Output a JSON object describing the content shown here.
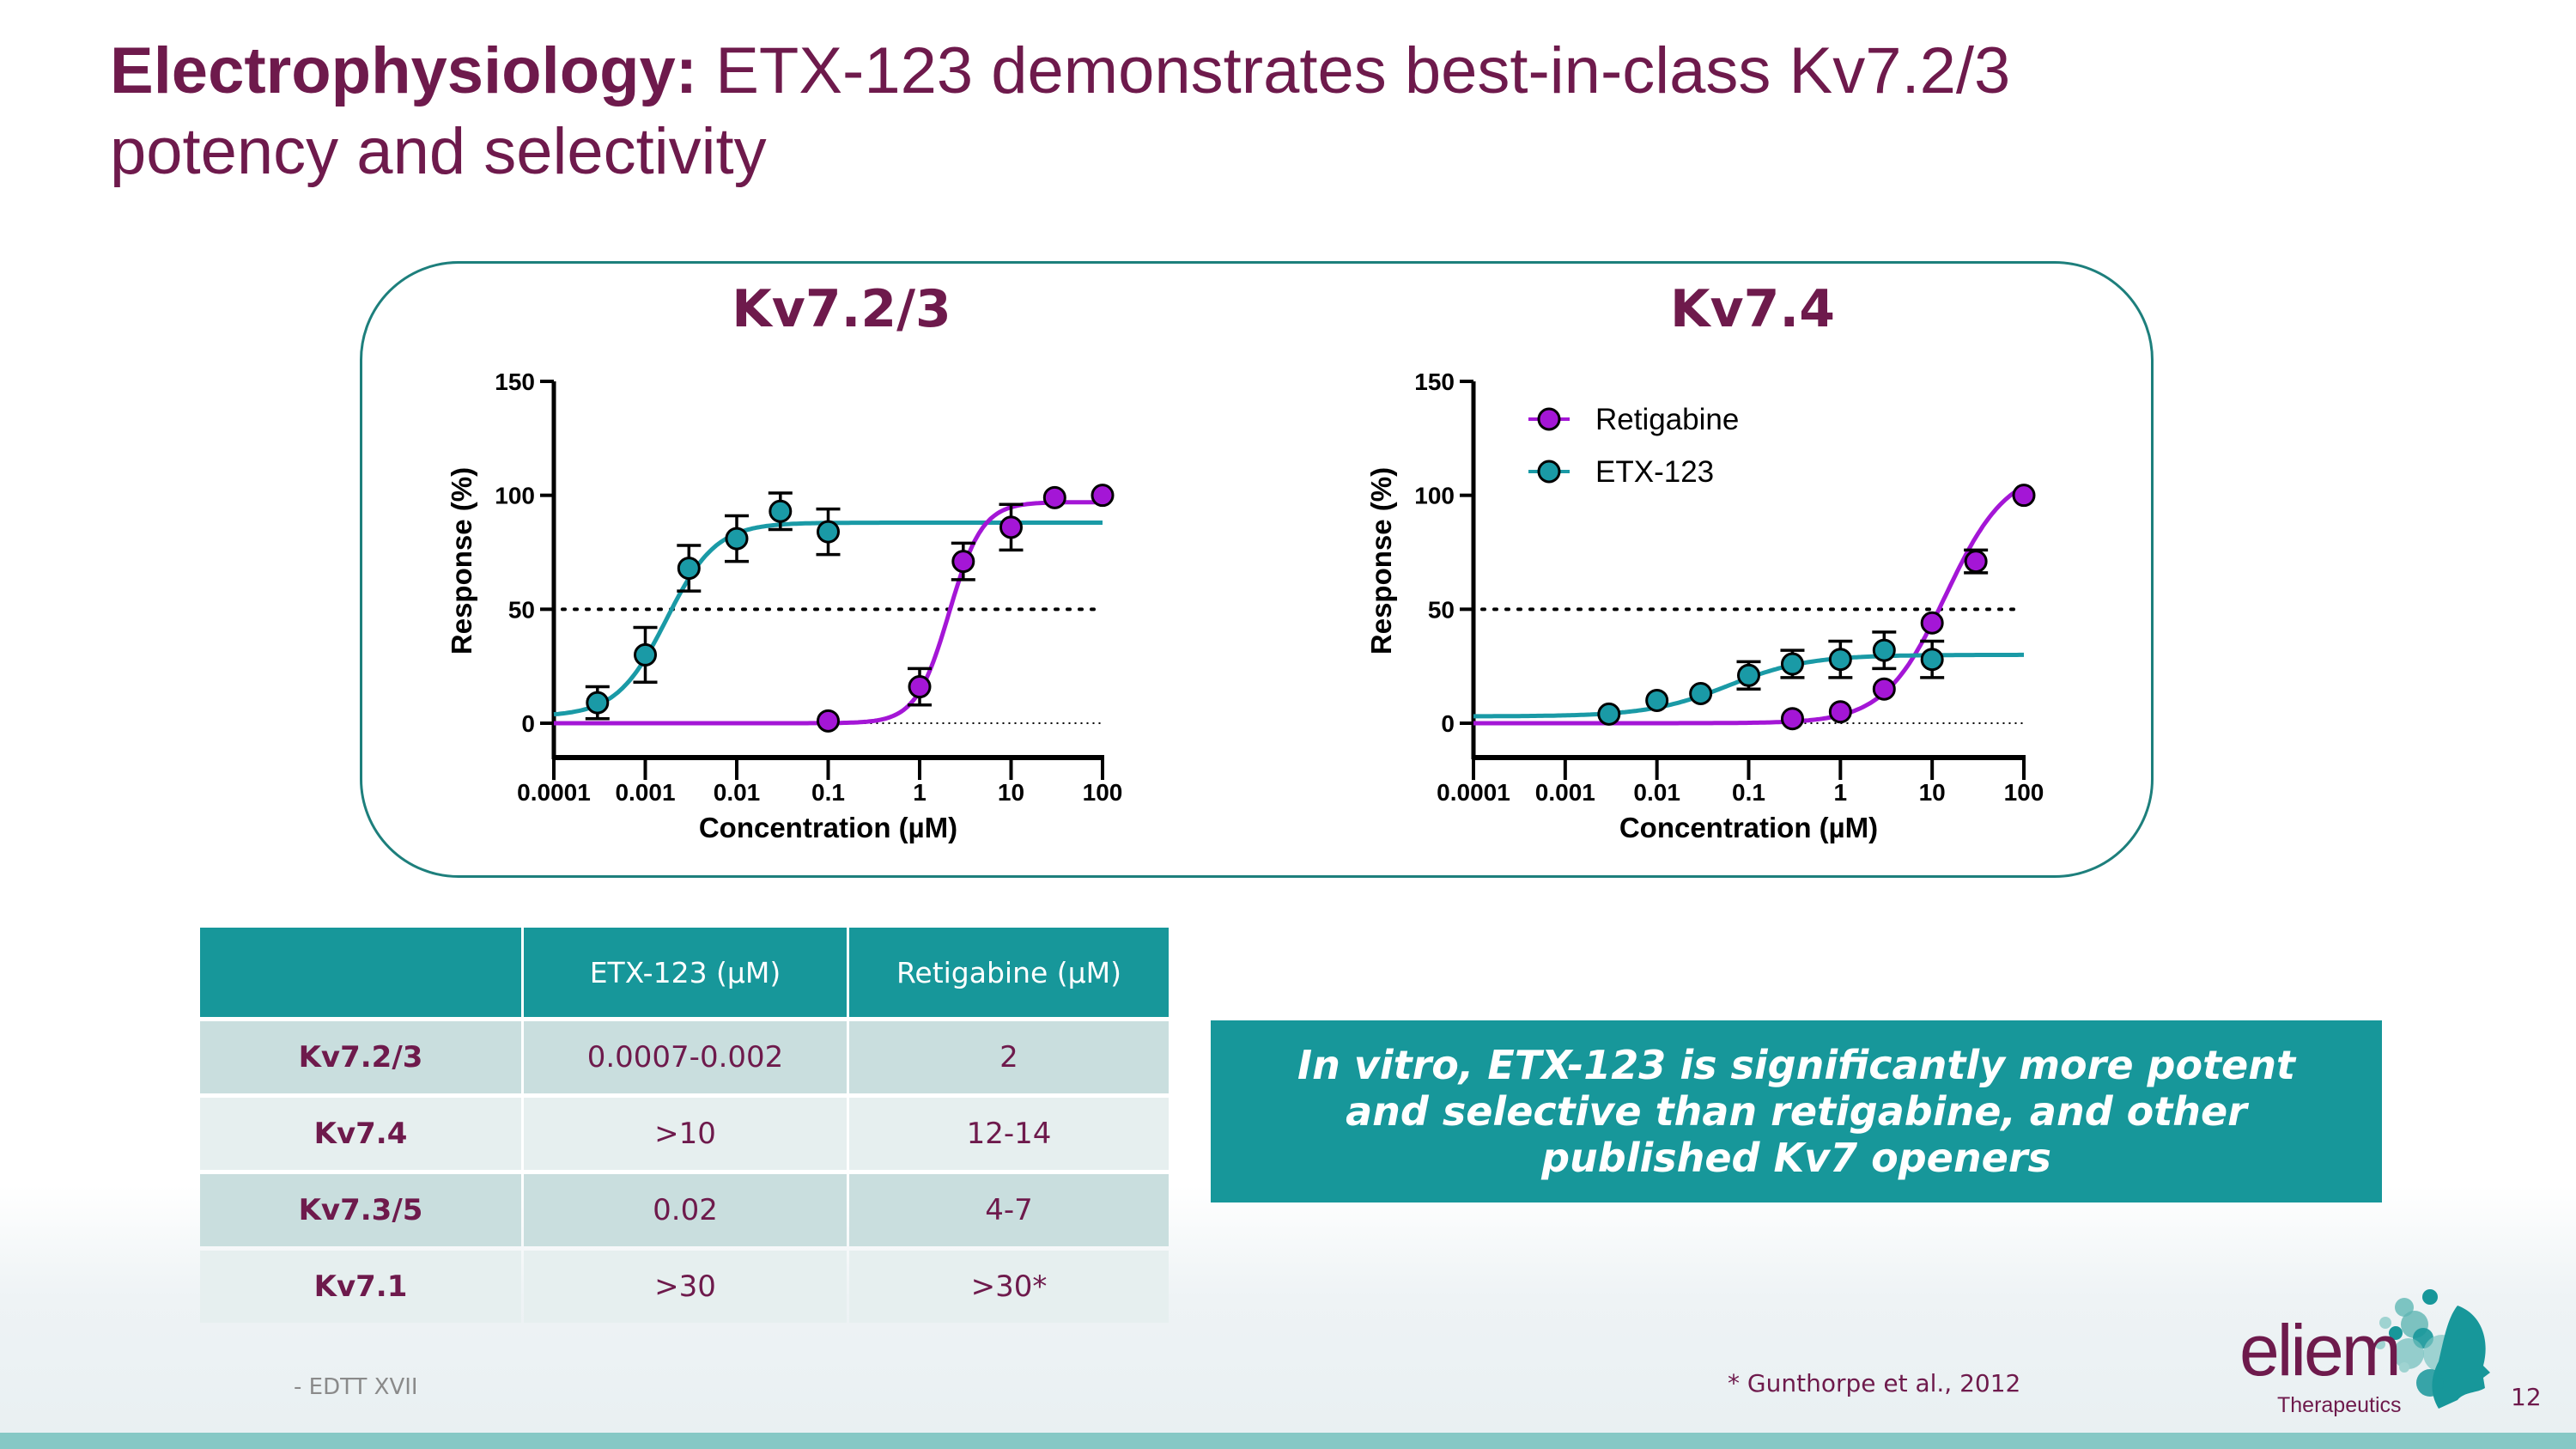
{
  "title": {
    "bold": "Electrophysiology:",
    "regular": " ETX-123 demonstrates best-in-class Kv7.2/3",
    "line2": "potency and selectivity"
  },
  "colors": {
    "brand_plum": "#6e1a4c",
    "teal": "#17979a",
    "etx123_series": "#1a9aa6",
    "retigabine_series": "#a416d6"
  },
  "chart_data": [
    {
      "type": "scatter",
      "title": "Kv7.2/3",
      "xlabel": "Concentration (µM)",
      "ylabel": "Response (%)",
      "xscale": "log",
      "xlim": [
        0.0001,
        100
      ],
      "ylim": [
        0,
        150
      ],
      "xticks": [
        "0.0001",
        "0.001",
        "0.01",
        "0.1",
        "1",
        "10",
        "100"
      ],
      "yticks": [
        "0",
        "50",
        "100",
        "150"
      ],
      "reference_lines": [
        {
          "y": 50,
          "style": "dotted"
        },
        {
          "y": 0,
          "style": "dotted",
          "from_x": 0.1
        }
      ],
      "series": [
        {
          "name": "ETX-123",
          "color": "#1a9aa6",
          "points": [
            {
              "x": 0.0003,
              "y": 9,
              "err": 7
            },
            {
              "x": 0.001,
              "y": 30,
              "err": 12
            },
            {
              "x": 0.003,
              "y": 68,
              "err": 10
            },
            {
              "x": 0.01,
              "y": 81,
              "err": 10
            },
            {
              "x": 0.03,
              "y": 93,
              "err": 8
            },
            {
              "x": 0.1,
              "y": 84,
              "err": 10
            }
          ],
          "fit": {
            "bottom": 3,
            "top": 88,
            "ec50": 0.0017,
            "hill": 1.6
          }
        },
        {
          "name": "Retigabine",
          "color": "#a416d6",
          "points": [
            {
              "x": 0.1,
              "y": 1,
              "err": 0
            },
            {
              "x": 1,
              "y": 16,
              "err": 8
            },
            {
              "x": 3,
              "y": 71,
              "err": 8
            },
            {
              "x": 10,
              "y": 86,
              "err": 10
            },
            {
              "x": 30,
              "y": 99,
              "err": 0
            },
            {
              "x": 100,
              "y": 100,
              "err": 0
            }
          ],
          "fit": {
            "bottom": 0,
            "top": 97,
            "ec50": 2.1,
            "hill": 2.4
          }
        }
      ]
    },
    {
      "type": "scatter",
      "title": "Kv7.4",
      "xlabel": "Concentration (µM)",
      "ylabel": "Response (%)",
      "xscale": "log",
      "xlim": [
        0.0001,
        100
      ],
      "ylim": [
        0,
        150
      ],
      "xticks": [
        "0.0001",
        "0.001",
        "0.01",
        "0.1",
        "1",
        "10",
        "100"
      ],
      "yticks": [
        "0",
        "50",
        "100",
        "150"
      ],
      "reference_lines": [
        {
          "y": 50,
          "style": "dotted"
        },
        {
          "y": 0,
          "style": "dotted",
          "from_x": 0.3
        }
      ],
      "legend": {
        "position": "top-left",
        "entries": [
          "Retigabine",
          "ETX-123"
        ]
      },
      "series": [
        {
          "name": "Retigabine",
          "color": "#a416d6",
          "points": [
            {
              "x": 0.3,
              "y": 2,
              "err": 0
            },
            {
              "x": 1,
              "y": 5,
              "err": 0
            },
            {
              "x": 3,
              "y": 15,
              "err": 0
            },
            {
              "x": 10,
              "y": 44,
              "err": 0
            },
            {
              "x": 30,
              "y": 71,
              "err": 5
            },
            {
              "x": 100,
              "y": 100,
              "err": 0
            }
          ],
          "fit": {
            "bottom": 0,
            "top": 112,
            "ec50": 14,
            "hill": 1.3
          }
        },
        {
          "name": "ETX-123",
          "color": "#1a9aa6",
          "points": [
            {
              "x": 0.003,
              "y": 4,
              "err": 0
            },
            {
              "x": 0.01,
              "y": 10,
              "err": 0
            },
            {
              "x": 0.03,
              "y": 13,
              "err": 0
            },
            {
              "x": 0.1,
              "y": 21,
              "err": 6
            },
            {
              "x": 0.3,
              "y": 26,
              "err": 6
            },
            {
              "x": 1,
              "y": 28,
              "err": 8
            },
            {
              "x": 3,
              "y": 32,
              "err": 8
            },
            {
              "x": 10,
              "y": 28,
              "err": 8
            }
          ],
          "fit": {
            "bottom": 3,
            "top": 30,
            "ec50": 0.06,
            "hill": 1.0
          }
        }
      ]
    }
  ],
  "table": {
    "headers": [
      "",
      "ETX-123 (µM)",
      "Retigabine (µM)"
    ],
    "rows": [
      [
        "Kv7.2/3",
        "0.0007-0.002",
        "2"
      ],
      [
        "Kv7.4",
        ">10",
        "12-14"
      ],
      [
        "Kv7.3/5",
        "0.02",
        "4-7"
      ],
      [
        "Kv7.1",
        ">30",
        ">30*"
      ]
    ]
  },
  "callout": "In vitro, ETX-123 is significantly more potent and selective than retigabine, and other published Kv7 openers",
  "footer": {
    "left": "- EDTT XVII",
    "reference": "* Gunthorpe et al., 2012",
    "page_number": "12"
  },
  "logo": {
    "word": "eliem",
    "sub": "Therapeutics"
  }
}
